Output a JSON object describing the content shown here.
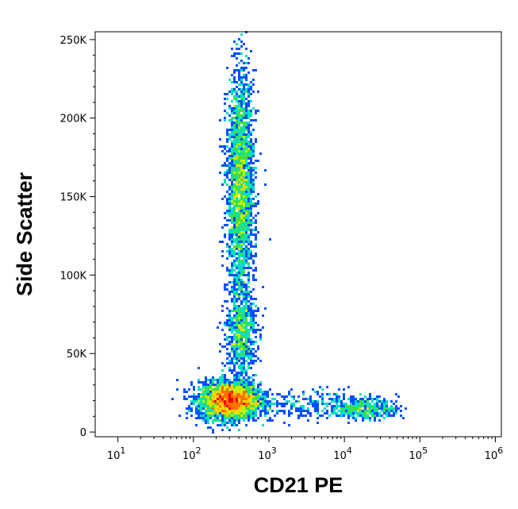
{
  "chart_data": {
    "type": "scatter",
    "style": "density-colored flow cytometry dot plot",
    "xlabel": "CD21 PE",
    "ylabel": "Side Scatter",
    "x_scale": "log",
    "xlim": [
      5,
      1200000
    ],
    "ylim": [
      -3000,
      255000
    ],
    "x_ticks": [
      {
        "value": 10,
        "base": "10",
        "exp": "1"
      },
      {
        "value": 100,
        "base": "10",
        "exp": "2"
      },
      {
        "value": 1000,
        "base": "10",
        "exp": "3"
      },
      {
        "value": 10000,
        "base": "10",
        "exp": "4"
      },
      {
        "value": 100000,
        "base": "10",
        "exp": "5"
      },
      {
        "value": 1000000,
        "base": "10",
        "exp": "6"
      }
    ],
    "y_ticks": [
      {
        "value": 0,
        "label": "0"
      },
      {
        "value": 50000,
        "label": "50K"
      },
      {
        "value": 100000,
        "label": "100K"
      },
      {
        "value": 150000,
        "label": "150K"
      },
      {
        "value": 200000,
        "label": "200K"
      },
      {
        "value": 250000,
        "label": "250K"
      }
    ],
    "density_colors": [
      "#0000cc",
      "#0050ff",
      "#00b4ff",
      "#00e0c0",
      "#40e040",
      "#c8f000",
      "#ffd000",
      "#ff7000",
      "#ee0000"
    ],
    "populations": [
      {
        "cx": 300,
        "cy": 20000,
        "sx_log": 0.2,
        "sy": 6000,
        "n": 3000
      },
      {
        "cx": 420,
        "cy": 155000,
        "sx_log": 0.09,
        "sy": 36000,
        "n": 2400
      },
      {
        "cx": 430,
        "cy": 62000,
        "sx_log": 0.1,
        "sy": 14000,
        "n": 700
      },
      {
        "cx": 18000,
        "cy": 15000,
        "sx_log": 0.22,
        "sy": 3500,
        "n": 420
      },
      {
        "cx": 2500,
        "cy": 17000,
        "sx_log": 0.45,
        "sy": 5000,
        "n": 260
      }
    ]
  }
}
